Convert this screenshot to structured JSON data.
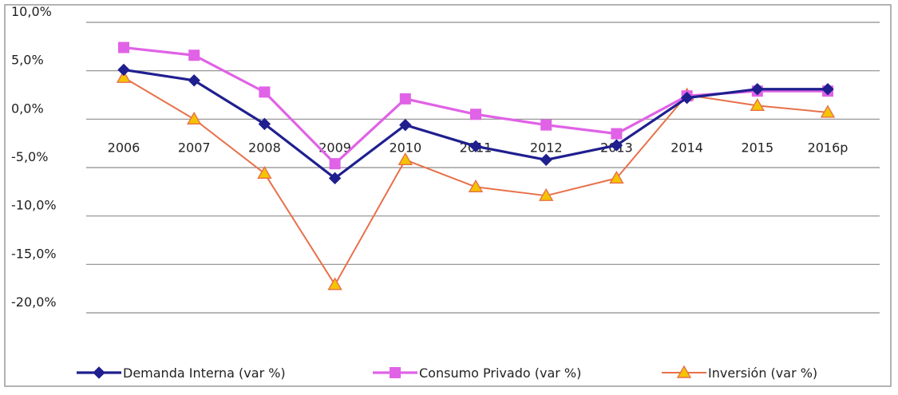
{
  "chart_data": {
    "type": "line",
    "title": "",
    "xlabel": "",
    "ylabel": "",
    "categories": [
      "2006",
      "2007",
      "2008",
      "2009",
      "2010",
      "2011",
      "2012",
      "2013",
      "2014",
      "2015",
      "2016p"
    ],
    "yticks": [
      "10,0%",
      "5,0%",
      "0,0%",
      "-5,0%",
      "-10,0%",
      "-15,0%",
      "-20,0%"
    ],
    "ylim": [
      -20,
      10
    ],
    "grid": true,
    "legend_position": "bottom",
    "series": [
      {
        "name": "Demanda Interna (var %)",
        "color": "#1f1f8f",
        "marker": "diamond",
        "values": [
          5.1,
          4.0,
          -0.5,
          -6.1,
          -0.6,
          -2.8,
          -4.2,
          -2.7,
          2.2,
          3.1,
          3.1
        ]
      },
      {
        "name": "Consumo Privado (var %)",
        "color": "#e062e6",
        "marker": "square",
        "values": [
          7.4,
          6.6,
          2.8,
          -4.6,
          2.1,
          0.5,
          -0.6,
          -1.5,
          2.4,
          2.9,
          2.9
        ]
      },
      {
        "name": "Inversión (var %)",
        "color": "#e8704a",
        "marker_fill": "#f5c400",
        "marker": "triangle",
        "values": [
          4.3,
          0.0,
          -5.6,
          -17.1,
          -4.2,
          -7.0,
          -7.9,
          -6.1,
          2.5,
          1.4,
          0.7
        ]
      }
    ]
  }
}
